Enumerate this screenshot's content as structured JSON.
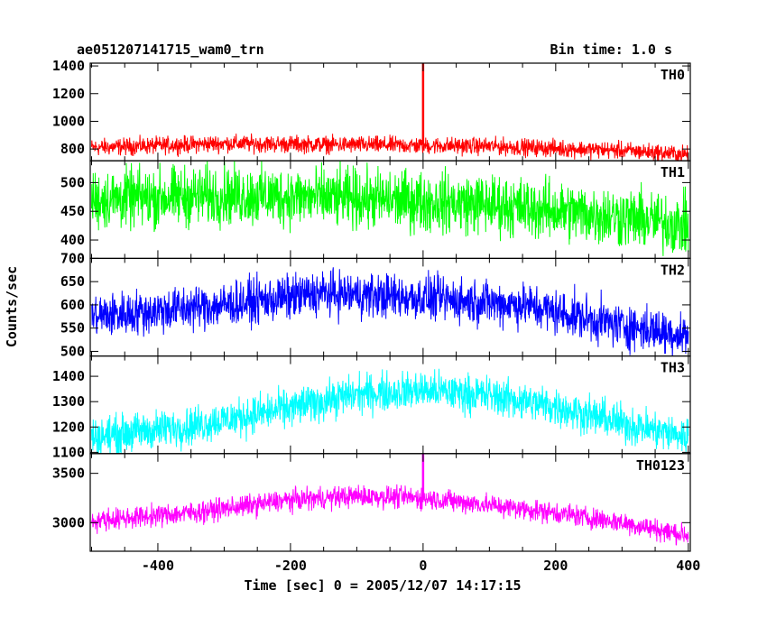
{
  "header": {
    "title": "ae051207141715_wam0_trn",
    "bin_time": "Bin time: 1.0 s"
  },
  "chart_data": {
    "type": "line",
    "title": "ae051207141715_wam0_trn",
    "xlabel": "Time [sec] 0 = 2005/12/07 14:17:15",
    "ylabel": "Counts/sec",
    "xlim": [
      -502,
      403
    ],
    "x_ticks": [
      -400,
      -200,
      0,
      200,
      400
    ],
    "grid": false,
    "panels": [
      {
        "name": "TH0",
        "color": "#ff0000",
        "ylim": [
          715,
          1420
        ],
        "y_ticks": [
          800,
          1000,
          1200,
          1400
        ],
        "baseline": [
          [
            -500,
            810
          ],
          [
            -300,
            840
          ],
          [
            -100,
            830
          ],
          [
            100,
            820
          ],
          [
            300,
            790
          ],
          [
            400,
            760
          ]
        ],
        "noise": 45,
        "spike": {
          "x": 0,
          "y": 1420
        }
      },
      {
        "name": "TH1",
        "color": "#00ff00",
        "ylim": [
          368,
          538
        ],
        "y_ticks": [
          400,
          450,
          500
        ],
        "baseline": [
          [
            -500,
            470
          ],
          [
            -300,
            478
          ],
          [
            -100,
            472
          ],
          [
            100,
            462
          ],
          [
            300,
            440
          ],
          [
            400,
            425
          ]
        ],
        "noise": 38
      },
      {
        "name": "TH2",
        "color": "#0000ff",
        "ylim": [
          490,
          700
        ],
        "y_ticks": [
          500,
          550,
          600,
          650,
          700
        ],
        "baseline": [
          [
            -500,
            575
          ],
          [
            -300,
            600
          ],
          [
            -150,
            625
          ],
          [
            0,
            615
          ],
          [
            150,
            600
          ],
          [
            300,
            555
          ],
          [
            400,
            535
          ]
        ],
        "noise": 35
      },
      {
        "name": "TH3",
        "color": "#00ffff",
        "ylim": [
          1095,
          1480
        ],
        "y_ticks": [
          1100,
          1200,
          1300,
          1400
        ],
        "baseline": [
          [
            -500,
            1160
          ],
          [
            -350,
            1205
          ],
          [
            -200,
            1275
          ],
          [
            -100,
            1330
          ],
          [
            0,
            1345
          ],
          [
            100,
            1325
          ],
          [
            200,
            1280
          ],
          [
            300,
            1215
          ],
          [
            400,
            1160
          ]
        ],
        "noise": 55
      },
      {
        "name": "TH0123",
        "color": "#ff00ff",
        "ylim": [
          2710,
          3700
        ],
        "y_ticks": [
          3000,
          3500
        ],
        "baseline": [
          [
            -500,
            3020
          ],
          [
            -350,
            3100
          ],
          [
            -200,
            3230
          ],
          [
            -100,
            3270
          ],
          [
            0,
            3250
          ],
          [
            100,
            3180
          ],
          [
            200,
            3100
          ],
          [
            300,
            3000
          ],
          [
            400,
            2870
          ]
        ],
        "noise": 80,
        "spike": {
          "x": 0,
          "y": 3700
        }
      }
    ]
  }
}
